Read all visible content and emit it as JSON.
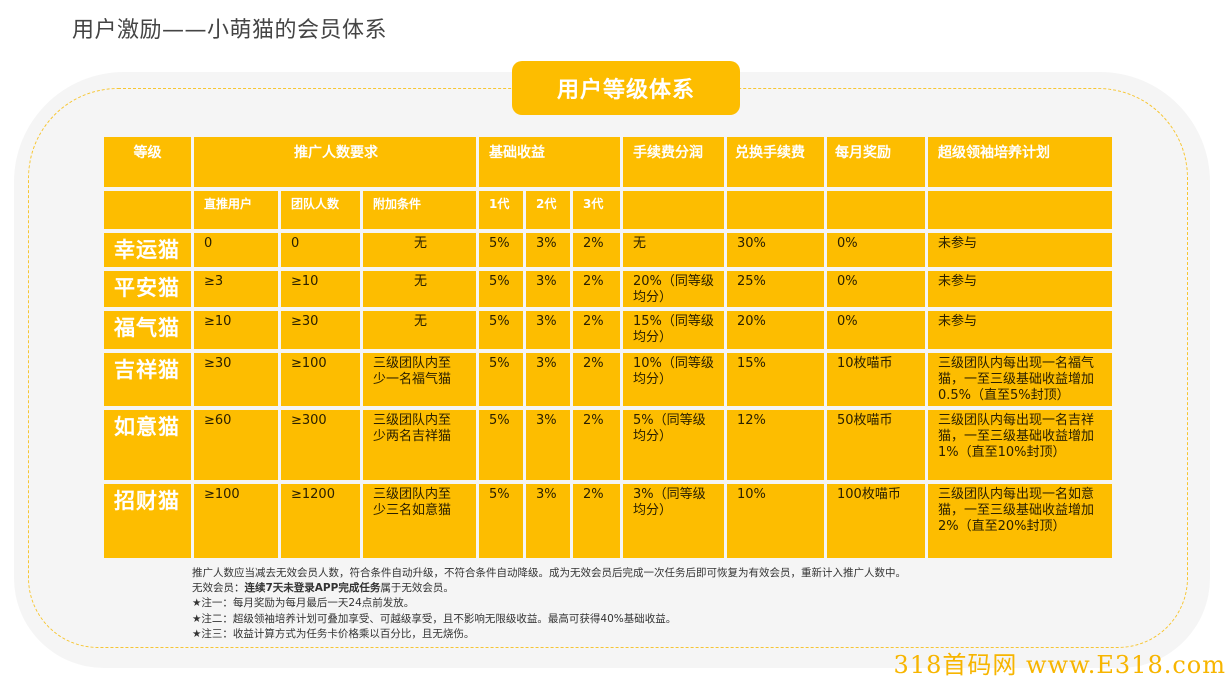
{
  "page": {
    "title": "用户激励——小萌猫的会员体系",
    "badge": "用户等级体系",
    "watermark": "318首码网 www.E318.com"
  },
  "colors": {
    "accent": "#fdbd00",
    "panel_bg": "#f5f5f5",
    "dashed": "#f7c632",
    "header_text": "#ffffff"
  },
  "table": {
    "headers": {
      "level": "等级",
      "referral": "推广人数要求",
      "base_income": "基础收益",
      "fee_share": "手续费分润",
      "exchange_fee": "兑换手续费",
      "monthly_reward": "每月奖励",
      "leader_plan": "超级领袖培养计划"
    },
    "subheaders": {
      "direct": "直推用户",
      "team": "团队人数",
      "extra": "附加条件",
      "gen1": "1代",
      "gen2": "2代",
      "gen3": "3代"
    },
    "rows": [
      {
        "level": "幸运猫",
        "direct": "0",
        "team": "0",
        "extra": "无",
        "gen1": "5%",
        "gen2": "3%",
        "gen3": "2%",
        "fee_share": "无",
        "exchange_fee": "30%",
        "monthly": "0%",
        "leader": "未参与"
      },
      {
        "level": "平安猫",
        "direct": "≥3",
        "team": "≥10",
        "extra": "无",
        "gen1": "5%",
        "gen2": "3%",
        "gen3": "2%",
        "fee_share": "20%（同等级均分）",
        "exchange_fee": "25%",
        "monthly": "0%",
        "leader": "未参与"
      },
      {
        "level": "福气猫",
        "direct": "≥10",
        "team": "≥30",
        "extra": "无",
        "gen1": "5%",
        "gen2": "3%",
        "gen3": "2%",
        "fee_share": "15%（同等级均分）",
        "exchange_fee": "20%",
        "monthly": "0%",
        "leader": "未参与"
      },
      {
        "level": "吉祥猫",
        "direct": "≥30",
        "team": "≥100",
        "extra": "三级团队内至少一名福气猫",
        "gen1": "5%",
        "gen2": "3%",
        "gen3": "2%",
        "fee_share": "10%（同等级均分）",
        "exchange_fee": "15%",
        "monthly": "10枚喵币",
        "leader": "三级团队内每出现一名福气猫，一至三级基础收益增加0.5%（直至5%封顶）"
      },
      {
        "level": "如意猫",
        "direct": "≥60",
        "team": "≥300",
        "extra": "三级团队内至少两名吉祥猫",
        "gen1": "5%",
        "gen2": "3%",
        "gen3": "2%",
        "fee_share": "5%（同等级均分）",
        "exchange_fee": "12%",
        "monthly": "50枚喵币",
        "leader": "三级团队内每出现一名吉祥猫，一至三级基础收益增加1%（直至10%封顶）"
      },
      {
        "level": "招财猫",
        "direct": "≥100",
        "team": "≥1200",
        "extra": "三级团队内至少三名如意猫",
        "gen1": "5%",
        "gen2": "3%",
        "gen3": "2%",
        "fee_share": "3%（同等级均分）",
        "exchange_fee": "10%",
        "monthly": "100枚喵币",
        "leader": "三级团队内每出现一名如意猫，一至三级基础收益增加2%（直至20%封顶）"
      }
    ]
  },
  "notes": {
    "line1": "推广人数应当减去无效会员人数，符合条件自动升级，不符合条件自动降级。成为无效会员后完成一次任务后即可恢复为有效会员，重新计入推广人数中。",
    "line2_prefix": "无效会员：",
    "line2_bold": "连续7天未登录APP完成任务",
    "line2_suffix": "属于无效会员。",
    "line3": "★注一：每月奖励为每月最后一天24点前发放。",
    "line4": "★注二：超级领袖培养计划可叠加享受、可越级享受，且不影响无限级收益。最高可获得40%基础收益。",
    "line5": "★注三：收益计算方式为任务卡价格乘以百分比，且无烧伤。"
  }
}
